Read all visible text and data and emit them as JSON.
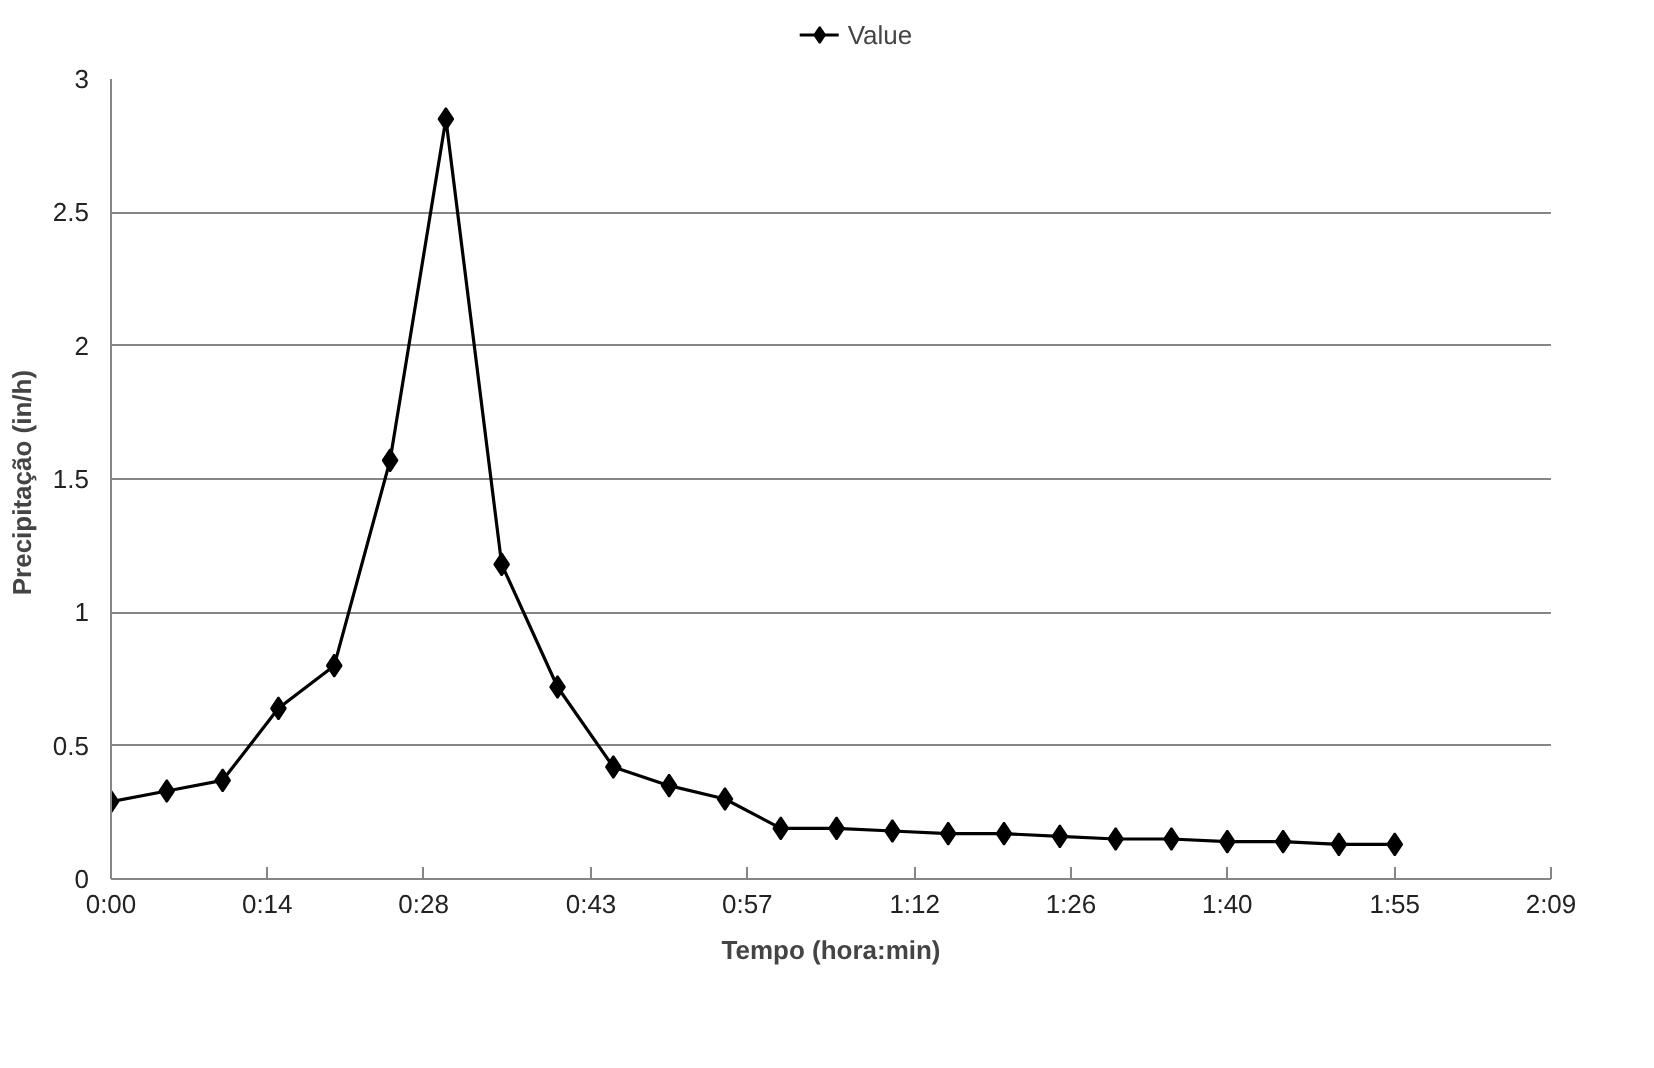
{
  "chart_data": {
    "type": "line",
    "xlabel": "Tempo (hora:min)",
    "ylabel": "Precipitação  (in/h)",
    "x": [
      0,
      0.0833,
      0.1667,
      0.25,
      0.3333,
      0.4167,
      0.5,
      0.5833,
      0.6667,
      0.75,
      0.8333,
      0.9167,
      1,
      1.0833,
      1.1667,
      1.25,
      1.3333,
      1.4167,
      1.5,
      1.5833,
      1.6667,
      1.75,
      1.8333,
      1.9167
    ],
    "series": [
      {
        "name": "Value",
        "color": "#000000",
        "values": [
          0.29,
          0.33,
          0.37,
          0.64,
          0.8,
          1.57,
          2.85,
          1.18,
          0.72,
          0.42,
          0.35,
          0.3,
          0.19,
          0.19,
          0.18,
          0.17,
          0.17,
          0.16,
          0.15,
          0.15,
          0.14,
          0.14,
          0.13,
          0.13
        ]
      }
    ],
    "xlim": [
      0,
      2.15
    ],
    "ylim": [
      0,
      3
    ],
    "xticks": [
      {
        "value": 0,
        "label": "0:00"
      },
      {
        "value": 0.2333,
        "label": "0:14"
      },
      {
        "value": 0.4667,
        "label": "0:28"
      },
      {
        "value": 0.7167,
        "label": "0:43"
      },
      {
        "value": 0.95,
        "label": "0:57"
      },
      {
        "value": 1.2,
        "label": "1:12"
      },
      {
        "value": 1.4333,
        "label": "1:26"
      },
      {
        "value": 1.6667,
        "label": "1:40"
      },
      {
        "value": 1.9167,
        "label": "1:55"
      },
      {
        "value": 2.15,
        "label": "2:09"
      }
    ],
    "yticks": [
      0,
      0.5,
      1,
      1.5,
      2,
      2.5,
      3
    ],
    "grid": "y",
    "legend": "top",
    "marker": "diamond",
    "line_style": "solid"
  }
}
